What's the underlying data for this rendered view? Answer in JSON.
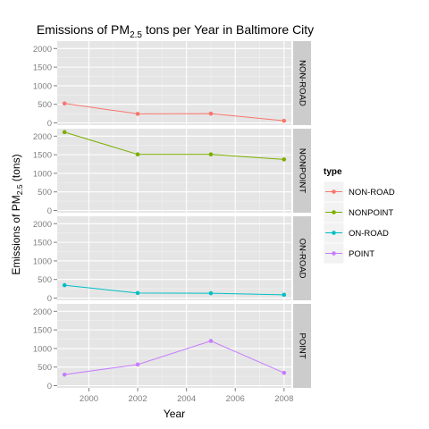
{
  "chart_data": {
    "type": "line",
    "title": {
      "main": "Emissions of PM",
      "sub": "2.5",
      "rest": " tons per Year in Baltimore City"
    },
    "xlabel": "Year",
    "ylabel": {
      "main": "Emissions of  PM",
      "sub": "2.5",
      "rest": " (tons)"
    },
    "legend": {
      "title": "type",
      "position": "right"
    },
    "x": [
      1999,
      2002,
      2005,
      2008
    ],
    "xlim": [
      1998.7,
      2008.3
    ],
    "x_ticks": [
      2000,
      2002,
      2004,
      2006,
      2008
    ],
    "ylim": [
      -60,
      2200
    ],
    "y_ticks": [
      0,
      500,
      1000,
      1500,
      2000
    ],
    "grid": true,
    "series": [
      {
        "name": "NON-ROAD",
        "color": "#F8766D",
        "values": [
          522.94,
          242.85,
          248.93,
          55.82
        ]
      },
      {
        "name": "NONPOINT",
        "color": "#7CAE00",
        "values": [
          2107.6,
          1509.5,
          1509.5,
          1373.2
        ]
      },
      {
        "name": "ON-ROAD",
        "color": "#00BFC4",
        "values": [
          346.82,
          134.31,
          130.43,
          88.28
        ]
      },
      {
        "name": "POINT",
        "color": "#C77CFF",
        "values": [
          296.8,
          569.26,
          1202.49,
          344.98
        ]
      }
    ]
  }
}
